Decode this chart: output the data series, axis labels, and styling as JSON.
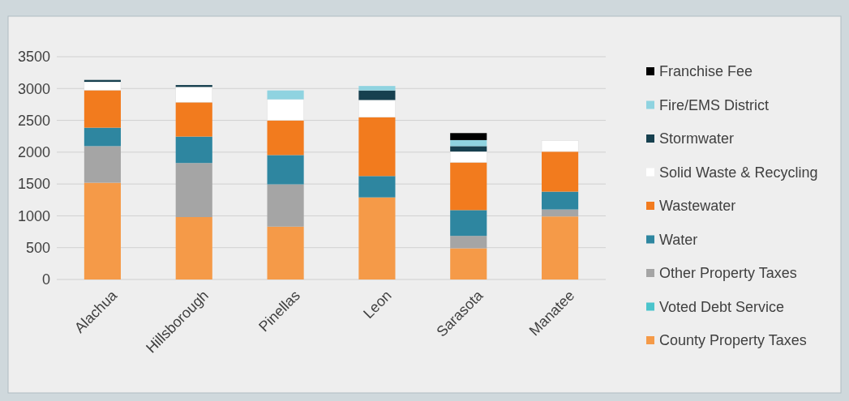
{
  "chart_data": {
    "type": "bar",
    "stacked": true,
    "categories": [
      "Alachua",
      "Hillsborough",
      "Pinellas",
      "Leon",
      "Sarasota",
      "Manatee"
    ],
    "series": [
      {
        "name": "County Property Taxes",
        "color": "#f59a48",
        "values": [
          1520,
          980,
          830,
          1290,
          490,
          990
        ]
      },
      {
        "name": "Voted Debt Service",
        "color": "#4bc4cc",
        "values": [
          null,
          null,
          null,
          null,
          null,
          null
        ]
      },
      {
        "name": "Other Property Taxes",
        "color": "#a5a5a5",
        "values": [
          575,
          850,
          665,
          null,
          195,
          110
        ]
      },
      {
        "name": "Water",
        "color": "#2e86a0",
        "values": [
          290,
          415,
          460,
          335,
          405,
          280
        ]
      },
      {
        "name": "Wastewater",
        "color": "#f27b1e",
        "values": [
          590,
          540,
          545,
          925,
          750,
          630
        ]
      },
      {
        "name": "Solid Waste & Recycling",
        "color": "#ffffff",
        "values": [
          130,
          240,
          330,
          270,
          170,
          170
        ]
      },
      {
        "name": "Stormwater",
        "color": "#17404f",
        "values": [
          30,
          30,
          null,
          150,
          85,
          null
        ]
      },
      {
        "name": "Fire/EMS District",
        "color": "#8fd3e0",
        "values": [
          null,
          null,
          140,
          70,
          95,
          null
        ]
      },
      {
        "name": "Franchise Fee",
        "color": "#000000",
        "values": [
          null,
          null,
          null,
          null,
          110,
          null
        ]
      }
    ],
    "ylim": [
      0,
      3500
    ],
    "yticks": [
      0,
      500,
      1000,
      1500,
      2000,
      2500,
      3000,
      3500
    ],
    "grid": "y",
    "legend": "right"
  }
}
